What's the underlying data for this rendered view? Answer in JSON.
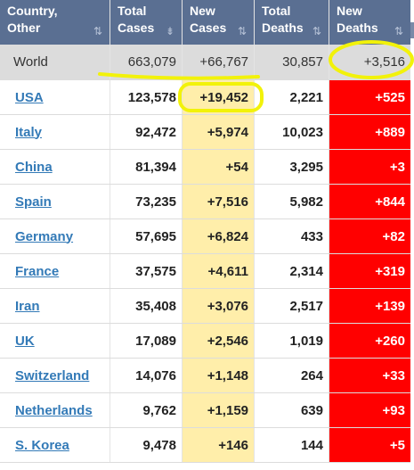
{
  "header": {
    "country_label": "Country,\nOther",
    "total_cases_label": "Total\nCases",
    "new_cases_label": "New\nCases",
    "total_deaths_label": "Total\nDeaths",
    "new_deaths_label": "New\nDeaths",
    "sort_icon": "sort-arrows-icon"
  },
  "world": {
    "name": "World",
    "total_cases": "663,079",
    "new_cases": "+66,767",
    "total_deaths": "30,857",
    "new_deaths": "+3,516"
  },
  "rows": [
    {
      "country": "USA",
      "total_cases": "123,578",
      "new_cases": "+19,452",
      "total_deaths": "2,221",
      "new_deaths": "+525"
    },
    {
      "country": "Italy",
      "total_cases": "92,472",
      "new_cases": "+5,974",
      "total_deaths": "10,023",
      "new_deaths": "+889"
    },
    {
      "country": "China",
      "total_cases": "81,394",
      "new_cases": "+54",
      "total_deaths": "3,295",
      "new_deaths": "+3"
    },
    {
      "country": "Spain",
      "total_cases": "73,235",
      "new_cases": "+7,516",
      "total_deaths": "5,982",
      "new_deaths": "+844"
    },
    {
      "country": "Germany",
      "total_cases": "57,695",
      "new_cases": "+6,824",
      "total_deaths": "433",
      "new_deaths": "+82"
    },
    {
      "country": "France",
      "total_cases": "37,575",
      "new_cases": "+4,611",
      "total_deaths": "2,314",
      "new_deaths": "+319"
    },
    {
      "country": "Iran",
      "total_cases": "35,408",
      "new_cases": "+3,076",
      "total_deaths": "2,517",
      "new_deaths": "+139"
    },
    {
      "country": "UK",
      "total_cases": "17,089",
      "new_cases": "+2,546",
      "total_deaths": "1,019",
      "new_deaths": "+260"
    },
    {
      "country": "Switzerland",
      "total_cases": "14,076",
      "new_cases": "+1,148",
      "total_deaths": "264",
      "new_deaths": "+33"
    },
    {
      "country": "Netherlands",
      "total_cases": "9,762",
      "new_cases": "+1,159",
      "total_deaths": "639",
      "new_deaths": "+93"
    },
    {
      "country": "S. Korea",
      "total_cases": "9,478",
      "new_cases": "+146",
      "total_deaths": "144",
      "new_deaths": "+5"
    }
  ],
  "colors": {
    "header_bg": "#5a6f92",
    "new_cases_bg": "#ffeeaa",
    "new_deaths_bg": "#ff0000",
    "link": "#337ab7",
    "highlighter": "#f2f20a"
  }
}
